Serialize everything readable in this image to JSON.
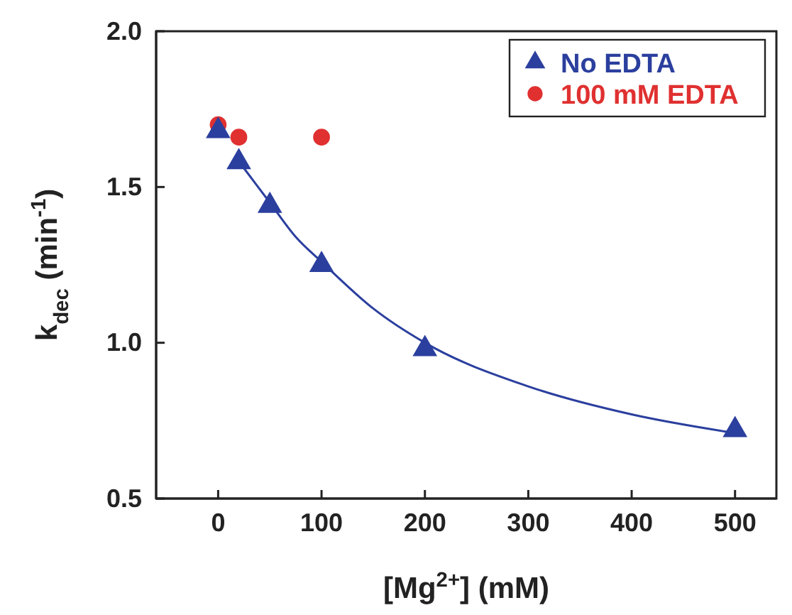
{
  "chart_data": {
    "type": "scatter",
    "xlabel": "[Mg$^{2+}$] (mM)",
    "ylabel": "k$_{dec}$ (min$^{-1}$)",
    "xlim": [
      -60,
      540
    ],
    "xticks": [
      0,
      100,
      200,
      300,
      400,
      500
    ],
    "ylim": [
      0.5,
      2.0
    ],
    "yticks": [
      {
        "value": 0.5,
        "label": "0.5"
      },
      {
        "value": 1.0,
        "label": "1.0"
      },
      {
        "value": 1.5,
        "label": "1.5"
      },
      {
        "value": 2.0,
        "label": "2.0"
      }
    ],
    "legend": "top right",
    "grid": false,
    "series": [
      {
        "type": "line",
        "color": "#2b3f9e",
        "marker": "none",
        "x": [
          25,
          50,
          75,
          100,
          150,
          200,
          300,
          400,
          500
        ],
        "values": [
          1.56,
          1.45,
          1.34,
          1.26,
          1.11,
          1.0,
          0.86,
          0.77,
          0.71
        ]
      },
      {
        "name": "No EDTA",
        "color": "#2b3f9e",
        "marker": "triangle",
        "x": [
          0,
          20,
          50,
          100,
          200,
          500
        ],
        "values": [
          1.68,
          1.58,
          1.44,
          1.25,
          0.98,
          0.72
        ]
      },
      {
        "name": "100 mM EDTA",
        "color": "#e03030",
        "marker": "circle",
        "x": [
          0,
          20,
          100
        ],
        "values": [
          1.7,
          1.66,
          1.66
        ]
      }
    ]
  }
}
